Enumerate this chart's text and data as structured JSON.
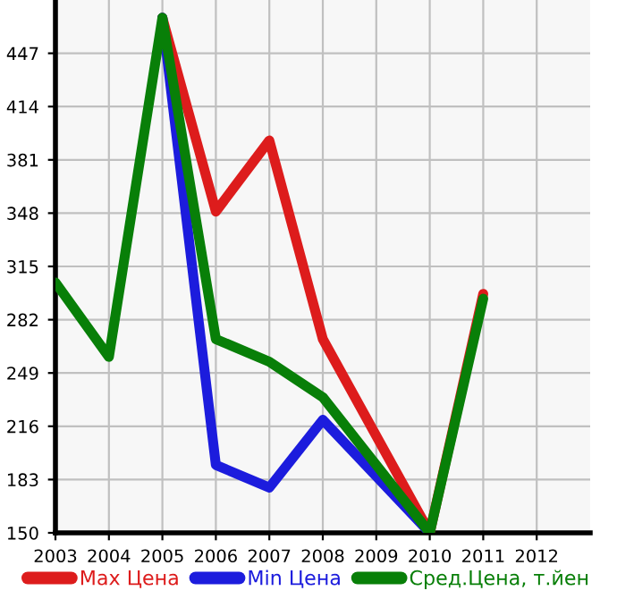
{
  "chart_data": {
    "type": "line",
    "xlim": [
      2003,
      2013
    ],
    "xticks": [
      2003,
      2004,
      2005,
      2006,
      2007,
      2008,
      2009,
      2010,
      2011,
      2012
    ],
    "ylim": [
      150,
      480
    ],
    "yticks": [
      150,
      183,
      216,
      249,
      282,
      315,
      348,
      381,
      414,
      447
    ],
    "grid": true,
    "legend": "bottom",
    "marker": "none",
    "line_style": "solid",
    "series": [
      {
        "name": "Max Цена",
        "color": "#dd1c1c",
        "x": [
          2005,
          2006,
          2007,
          2008,
          2010,
          2011
        ],
        "values": [
          469,
          349,
          393,
          270,
          150,
          298
        ]
      },
      {
        "name": "Min Цена",
        "color": "#1c1cdd",
        "x": [
          2005,
          2006,
          2007,
          2008,
          2010
        ],
        "values": [
          469,
          192,
          178,
          220,
          150
        ]
      },
      {
        "name": "Сред.Цена, т.йен",
        "color": "#087f08",
        "x": [
          2003,
          2004,
          2005,
          2006,
          2007,
          2008,
          2010,
          2011
        ],
        "values": [
          305,
          259,
          469,
          270,
          256,
          234,
          150,
          295
        ]
      }
    ]
  }
}
